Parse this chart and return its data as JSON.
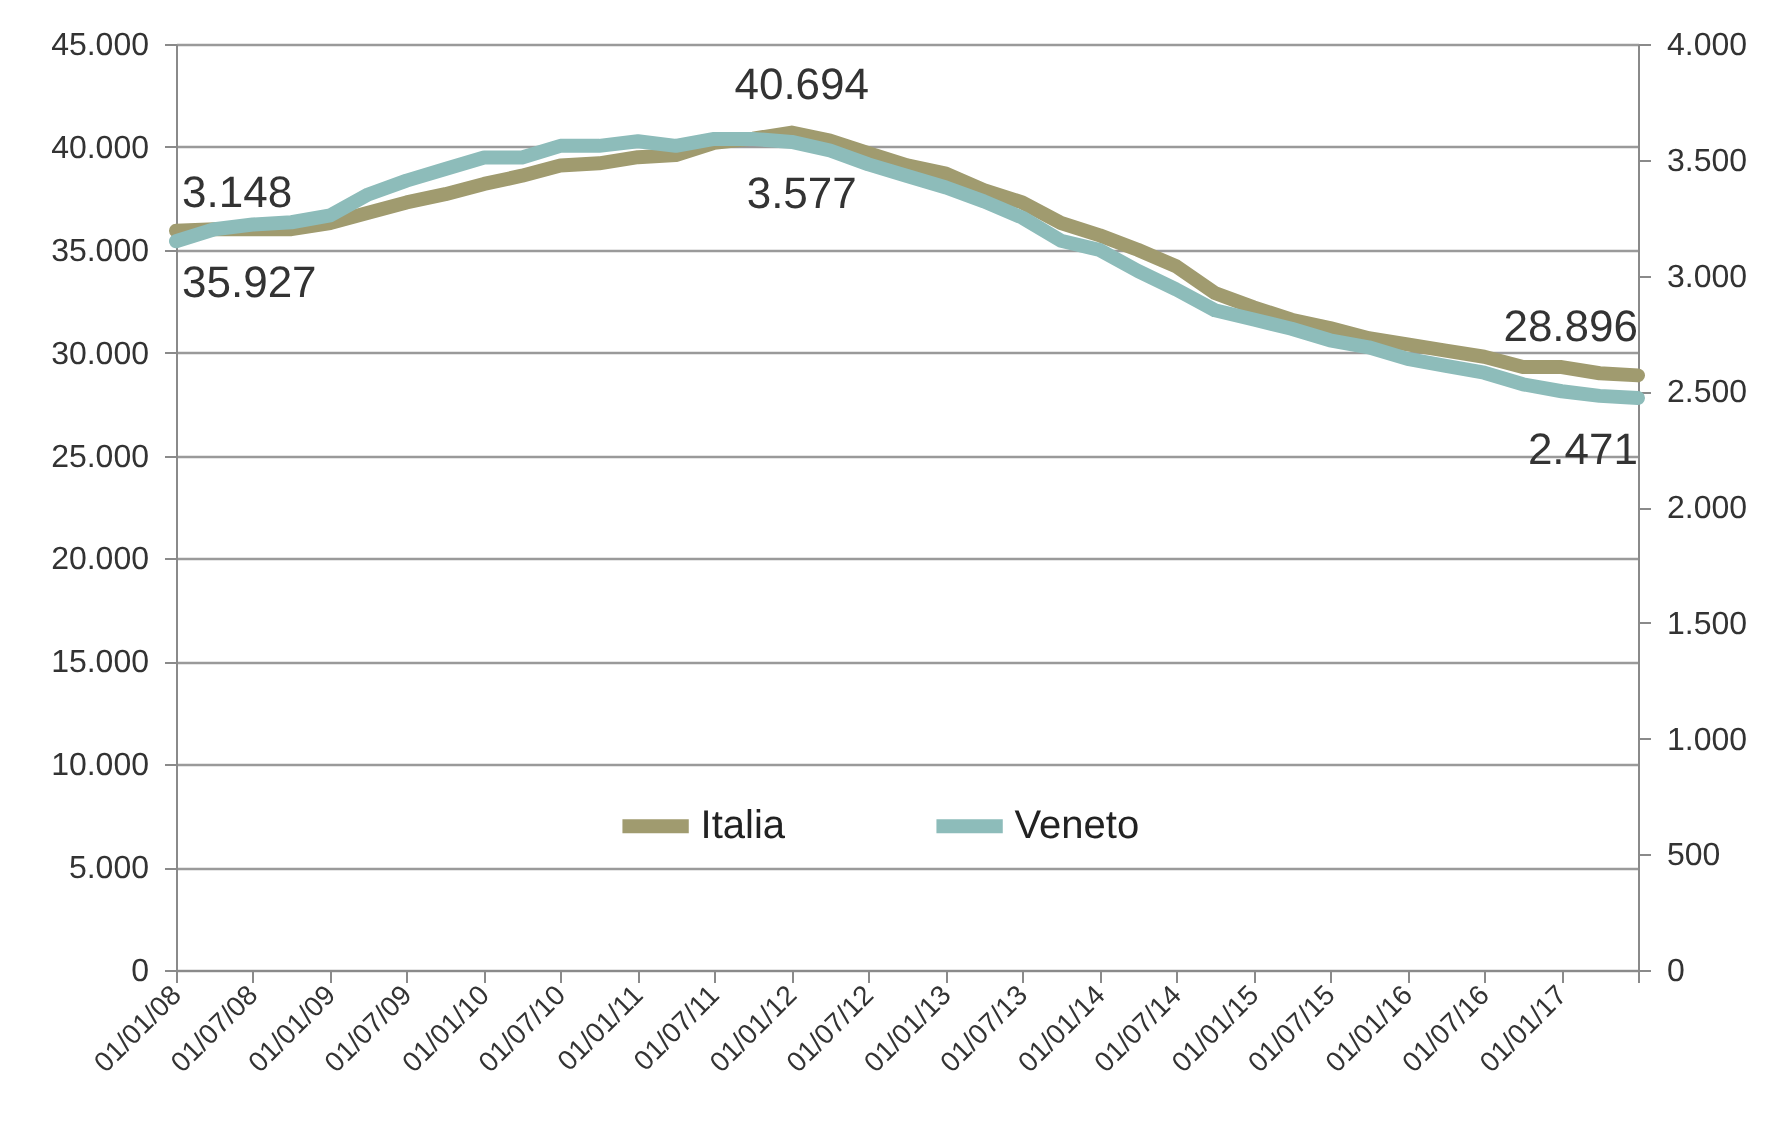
{
  "chart_data": {
    "type": "line",
    "x": [
      "2008-01",
      "2008-04",
      "2008-07",
      "2008-10",
      "2009-01",
      "2009-04",
      "2009-07",
      "2009-10",
      "2010-01",
      "2010-04",
      "2010-07",
      "2010-10",
      "2011-01",
      "2011-04",
      "2011-07",
      "2011-10",
      "2012-01",
      "2012-04",
      "2012-07",
      "2012-10",
      "2013-01",
      "2013-04",
      "2013-07",
      "2013-10",
      "2014-01",
      "2014-04",
      "2014-07",
      "2014-10",
      "2015-01",
      "2015-04",
      "2015-07",
      "2015-10",
      "2016-01",
      "2016-04",
      "2016-07",
      "2016-10",
      "2017-01",
      "2017-04",
      "2017-07"
    ],
    "series": [
      {
        "name": "Italia",
        "color": "#a09b6f",
        "values": [
          35927,
          36000,
          36000,
          36000,
          36300,
          36800,
          37300,
          37700,
          38200,
          38600,
          39100,
          39200,
          39500,
          39600,
          40200,
          40400,
          40694,
          40300,
          39700,
          39100,
          38700,
          37900,
          37300,
          36300,
          35700,
          35000,
          34200,
          32900,
          32200,
          31600,
          31200,
          30700,
          30400,
          30100,
          29800,
          29300,
          29300,
          29000,
          28896
        ],
        "value_labels": [
          "35.927",
          null,
          null,
          null,
          null,
          null,
          null,
          null,
          null,
          null,
          null,
          null,
          null,
          null,
          null,
          null,
          "40.694",
          null,
          null,
          null,
          null,
          null,
          null,
          null,
          null,
          null,
          null,
          null,
          null,
          null,
          null,
          null,
          null,
          null,
          null,
          null,
          null,
          null,
          "28.896"
        ]
      },
      {
        "name": "Veneto",
        "color": "#8dbcba",
        "axis": "y2",
        "values": [
          3148,
          3200,
          3220,
          3230,
          3260,
          3350,
          3410,
          3460,
          3510,
          3510,
          3560,
          3560,
          3580,
          3560,
          3590,
          3590,
          3577,
          3540,
          3480,
          3430,
          3380,
          3320,
          3250,
          3150,
          3110,
          3020,
          2940,
          2850,
          2810,
          2770,
          2720,
          2690,
          2640,
          2610,
          2580,
          2530,
          2500,
          2480,
          2471
        ],
        "value_labels": [
          "3.148",
          null,
          null,
          null,
          null,
          null,
          null,
          null,
          null,
          null,
          null,
          null,
          null,
          null,
          null,
          null,
          "3.577",
          null,
          null,
          null,
          null,
          null,
          null,
          null,
          null,
          null,
          null,
          null,
          null,
          null,
          null,
          null,
          null,
          null,
          null,
          null,
          null,
          null,
          "2.471"
        ]
      }
    ],
    "xlim": [
      "2008-01",
      "2017-07"
    ],
    "xticks": [
      {
        "value": "2008-01",
        "label": "01/01/08"
      },
      {
        "value": "2008-07",
        "label": "01/07/08"
      },
      {
        "value": "2009-01",
        "label": "01/01/09"
      },
      {
        "value": "2009-07",
        "label": "01/07/09"
      },
      {
        "value": "2010-01",
        "label": "01/01/10"
      },
      {
        "value": "2010-07",
        "label": "01/07/10"
      },
      {
        "value": "2011-01",
        "label": "01/01/11"
      },
      {
        "value": "2011-07",
        "label": "01/07/11"
      },
      {
        "value": "2012-01",
        "label": "01/01/12"
      },
      {
        "value": "2012-07",
        "label": "01/07/12"
      },
      {
        "value": "2013-01",
        "label": "01/01/13"
      },
      {
        "value": "2013-07",
        "label": "01/07/13"
      },
      {
        "value": "2014-01",
        "label": "01/01/14"
      },
      {
        "value": "2014-07",
        "label": "01/07/14"
      },
      {
        "value": "2015-01",
        "label": "01/01/15"
      },
      {
        "value": "2015-07",
        "label": "01/07/15"
      },
      {
        "value": "2016-01",
        "label": "01/01/16"
      },
      {
        "value": "2016-07",
        "label": "01/07/16"
      },
      {
        "value": "2017-01",
        "label": "01/01/17"
      },
      {
        "value": "2017-07",
        "label": null
      }
    ],
    "ylim": [
      0,
      45000
    ],
    "yticks": [
      {
        "value": 0,
        "label": "0"
      },
      {
        "value": 5000,
        "label": "5.000"
      },
      {
        "value": 10000,
        "label": "10.000"
      },
      {
        "value": 15000,
        "label": "15.000"
      },
      {
        "value": 20000,
        "label": "20.000"
      },
      {
        "value": 25000,
        "label": "25.000"
      },
      {
        "value": 30000,
        "label": "30.000"
      },
      {
        "value": 35000,
        "label": "35.000"
      },
      {
        "value": 40000,
        "label": "40.000"
      },
      {
        "value": 45000,
        "label": "45.000"
      }
    ],
    "y2lim": [
      0,
      4000
    ],
    "y2ticks": [
      {
        "value": 0,
        "label": "0"
      },
      {
        "value": 500,
        "label": "500"
      },
      {
        "value": 1000,
        "label": "1.000"
      },
      {
        "value": 1500,
        "label": "1.500"
      },
      {
        "value": 2000,
        "label": "2.000"
      },
      {
        "value": 2500,
        "label": "2.500"
      },
      {
        "value": 3000,
        "label": "3.000"
      },
      {
        "value": 3500,
        "label": "3.500"
      },
      {
        "value": 4000,
        "label": "4.000"
      }
    ],
    "grid": "y",
    "legend": "bottom"
  }
}
